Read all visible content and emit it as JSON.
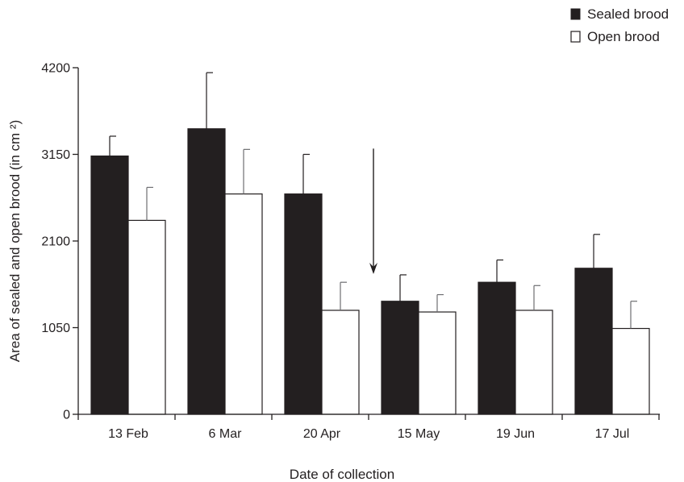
{
  "chart_data": {
    "type": "bar",
    "title": "",
    "xlabel": "Date of collection",
    "ylabel": "Area of sealed and open brood (in cm ²)",
    "ylim": [
      0,
      4200
    ],
    "yticks": [
      0,
      1050,
      2100,
      3150,
      4200
    ],
    "categories": [
      "13 Feb",
      "6 Mar",
      "20 Apr",
      "15 May",
      "19 Jun",
      "17 Jul"
    ],
    "series": [
      {
        "name": "Sealed brood",
        "color": "#231f20",
        "values": [
          3130,
          3460,
          2670,
          1370,
          1600,
          1770
        ],
        "error": [
          240,
          680,
          480,
          320,
          270,
          410
        ]
      },
      {
        "name": "Open brood",
        "color": "#ffffff",
        "values": [
          2350,
          2670,
          1260,
          1240,
          1260,
          1040
        ],
        "error": [
          400,
          540,
          340,
          210,
          300,
          330
        ]
      }
    ],
    "annotations": [
      {
        "type": "arrow-down",
        "category": "15 May",
        "from": 3220,
        "to": 1700
      }
    ],
    "legend_position": "top-right",
    "grid": false
  }
}
